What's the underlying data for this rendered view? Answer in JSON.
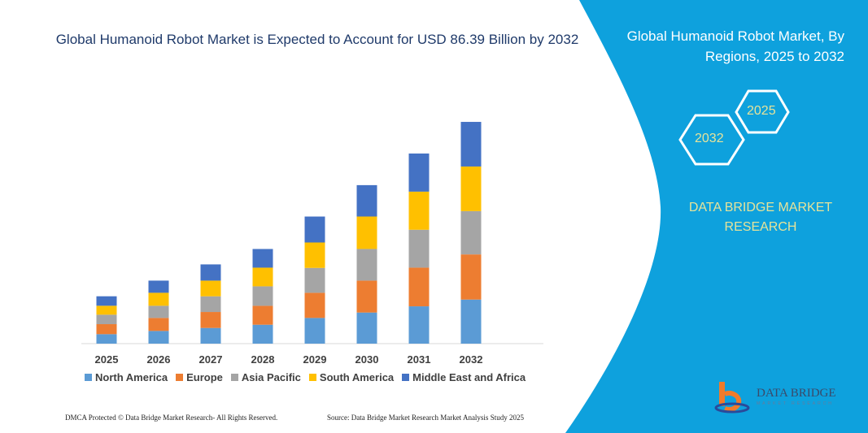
{
  "title": "Global Humanoid Robot Market is Expected to Account for USD 86.39 Billion by 2032",
  "side_panel": {
    "title": "Global Humanoid Robot Market, By Regions, 2025 to 2032",
    "hex_left": "2032",
    "hex_right": "2025",
    "brand": "DATA BRIDGE MARKET RESEARCH",
    "logo_text": "DATA BRIDGE",
    "logo_subtext": "MARKET RESEARCH",
    "panel_color": "#0ea1dd"
  },
  "footer": {
    "left": "DMCA Protected © Data Bridge Market Research-  All Rights Reserved.",
    "right": "Source: Data Bridge Market Research  Market Analysis Study 2025"
  },
  "chart_data": {
    "type": "bar",
    "stacked": true,
    "categories": [
      "2025",
      "2026",
      "2027",
      "2028",
      "2029",
      "2030",
      "2031",
      "2032"
    ],
    "series": [
      {
        "name": "North America",
        "color": "#5b9bd5",
        "values": [
          3.69,
          4.95,
          6.11,
          7.37,
          10.01,
          12.12,
          14.54,
          17.17
        ]
      },
      {
        "name": "Europe",
        "color": "#ed7d31",
        "values": [
          3.9,
          5.06,
          6.22,
          7.37,
          9.8,
          12.43,
          15.07,
          17.59
        ]
      },
      {
        "name": "Asia Pacific",
        "color": "#a5a5a5",
        "values": [
          3.69,
          4.74,
          6.11,
          7.59,
          9.69,
          12.33,
          14.75,
          16.86
        ]
      },
      {
        "name": "South America",
        "color": "#ffc000",
        "values": [
          3.48,
          5.06,
          6.11,
          7.27,
          9.9,
          12.64,
          14.85,
          17.38
        ]
      },
      {
        "name": "Middle East and Africa",
        "color": "#4472c4",
        "values": [
          3.69,
          4.74,
          6.32,
          7.27,
          10.11,
          12.22,
          14.85,
          17.38
        ]
      }
    ],
    "legend_position": "bottom",
    "grid": false,
    "y_axis_shown": false
  }
}
